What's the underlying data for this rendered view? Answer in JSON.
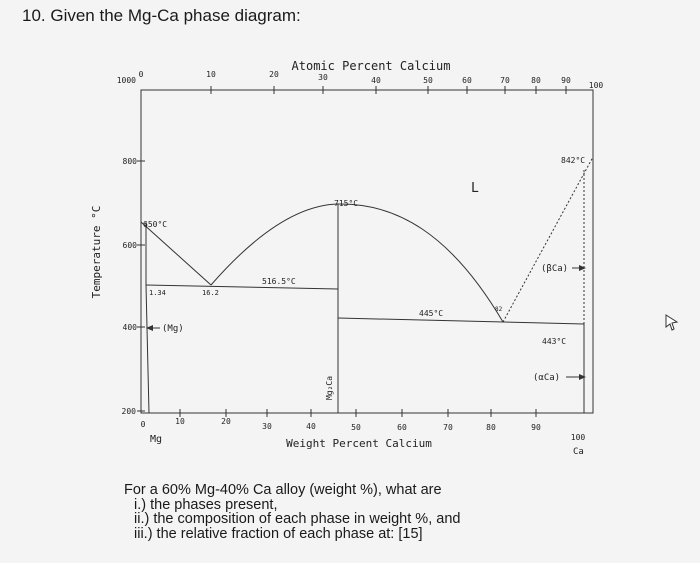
{
  "question_title": "10. Given the Mg-Ca phase diagram:",
  "diagram": {
    "top_axis_title": "Atomic Percent Calcium",
    "top_ticks": [
      "0",
      "10",
      "20",
      "30",
      "40",
      "50",
      "60",
      "70",
      "80",
      "90",
      "100"
    ],
    "bottom_axis_title": "Weight Percent Calcium",
    "bottom_ticks": [
      "0",
      "10",
      "20",
      "30",
      "40",
      "50",
      "60",
      "70",
      "80",
      "90",
      "100"
    ],
    "y_axis_title": "Temperature °C",
    "y_ticks": [
      "1000",
      "800",
      "600",
      "400",
      "200"
    ],
    "left_component": "Mg",
    "right_component": "Ca",
    "labels": {
      "mg_melting": "650°C",
      "compound_melting": "715°C",
      "ca_melting": "842°C",
      "eutectic1_temp": "516.5°C",
      "eutectic2_temp": "445°C",
      "ca_transform_temp": "443°C",
      "solubility_comp": "1.34",
      "eutectic1_comp": "16.2",
      "eutectic2_comp": "82",
      "liquid": "L",
      "mg_phase": "(Mg)",
      "compound": "Mg₂Ca",
      "beta_ca": "(βCa)",
      "alpha_ca": "(αCa)"
    }
  },
  "question": {
    "intro": "For a 60% Mg-40% Ca alloy (weight %), what are",
    "parts": [
      "i.) the phases present,",
      "ii.) the composition of each phase in weight %, and",
      "iii.) the relative fraction of each phase at: [15]"
    ]
  }
}
